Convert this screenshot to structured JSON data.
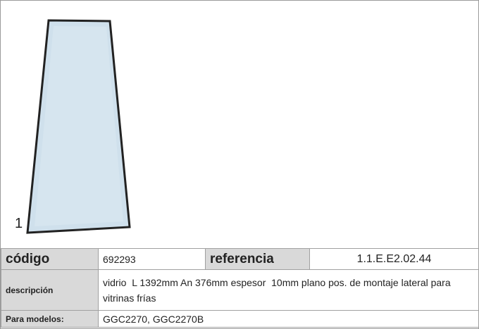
{
  "image_label": "1",
  "table": {
    "rows": [
      [
        "código",
        "692293",
        "referencia",
        "1.1.E.E2.02.44"
      ],
      [
        "descripción",
        "vidrio  L 1392mm An 376mm espesor  10mm plano pos. de montaje lateral para vitrinas frías"
      ],
      [
        "Para modelos:",
        "GGC2270, GGC2270B"
      ]
    ]
  }
}
